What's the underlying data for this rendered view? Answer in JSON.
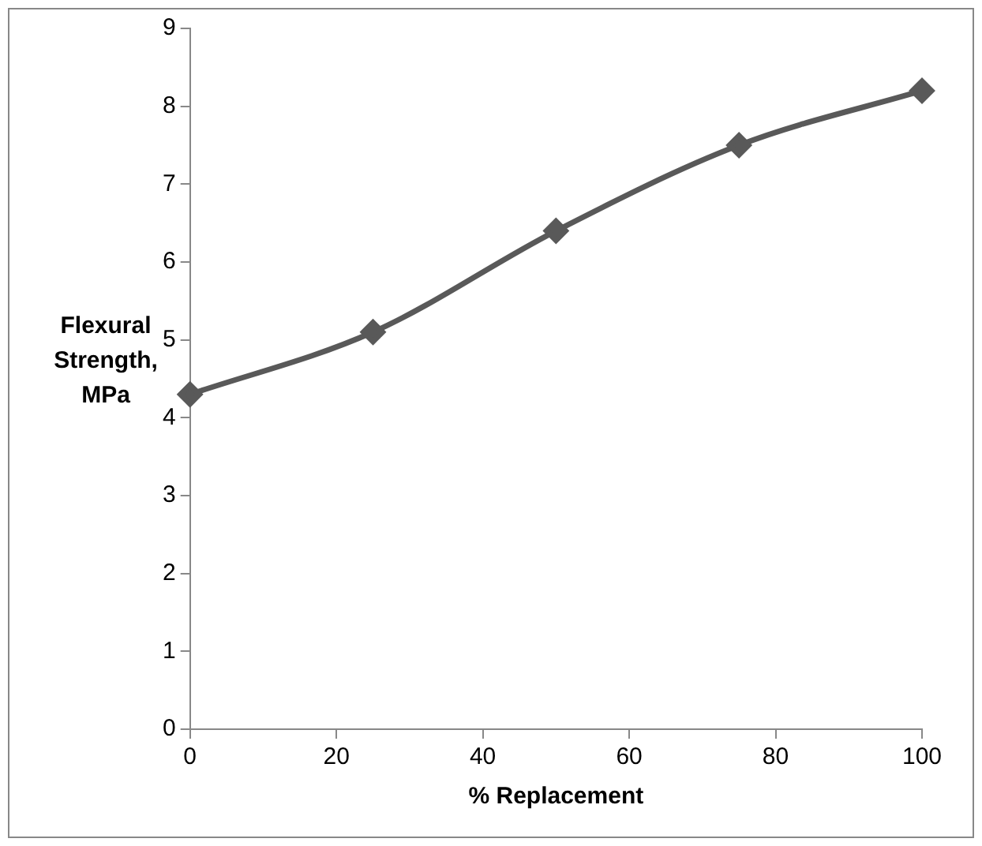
{
  "chart_data": {
    "type": "line",
    "xlabel": "% Replacement",
    "ylabel": "Flexural Strength, MPa",
    "x": [
      0,
      25,
      50,
      75,
      100
    ],
    "series": [
      {
        "color": "#595959",
        "values": [
          4.3,
          5.1,
          6.4,
          7.5,
          8.2
        ]
      }
    ],
    "xlim": [
      0,
      100
    ],
    "xticks": [
      0,
      20,
      40,
      60,
      80,
      100
    ],
    "ylim": [
      0,
      9
    ],
    "yticks": [
      0,
      1,
      2,
      3,
      4,
      5,
      6,
      7,
      8,
      9
    ],
    "grid": false,
    "legend": false,
    "marker": "diamond",
    "line_style": "solid"
  }
}
